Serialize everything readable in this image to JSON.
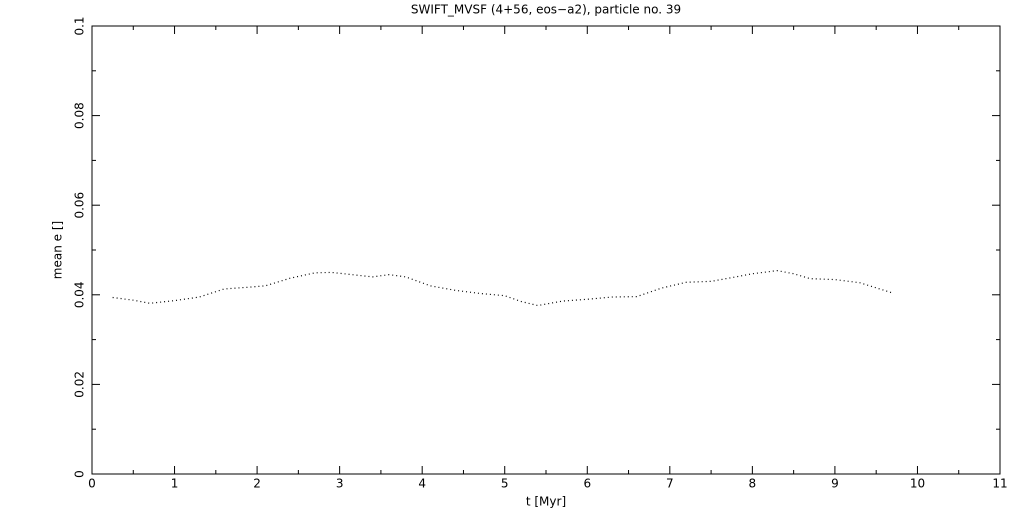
{
  "chart_data": {
    "type": "line",
    "title": "SWIFT_MVSF (4+56, eos−a2), particle no. 39",
    "x_label": "t [Myr]",
    "y_label": "mean e []",
    "x": [
      0.25,
      0.5,
      0.7,
      1.0,
      1.3,
      1.6,
      1.9,
      2.1,
      2.4,
      2.7,
      2.9,
      3.2,
      3.4,
      3.6,
      3.8,
      4.1,
      4.4,
      4.7,
      5.0,
      5.2,
      5.4,
      5.7,
      6.0,
      6.3,
      6.6,
      6.9,
      7.2,
      7.5,
      7.8,
      8.0,
      8.3,
      8.5,
      8.7,
      9.0,
      9.3,
      9.7
    ],
    "series": [
      {
        "name": "mean e",
        "color": "#000000",
        "values": [
          0.0394,
          0.0388,
          0.0381,
          0.0387,
          0.0395,
          0.0413,
          0.0417,
          0.042,
          0.0437,
          0.0449,
          0.045,
          0.0444,
          0.044,
          0.0445,
          0.044,
          0.042,
          0.041,
          0.0403,
          0.0398,
          0.0385,
          0.0376,
          0.0386,
          0.039,
          0.0395,
          0.0396,
          0.0415,
          0.0428,
          0.043,
          0.044,
          0.0447,
          0.0454,
          0.0447,
          0.0436,
          0.0434,
          0.0427,
          0.0404
        ]
      }
    ],
    "xlim": [
      0,
      11
    ],
    "xticks": [
      0,
      1,
      2,
      3,
      4,
      5,
      6,
      7,
      8,
      9,
      10,
      11
    ],
    "ylim": [
      0,
      0.1
    ],
    "yticks": [
      0,
      0.02,
      0.04,
      0.06,
      0.08,
      0.1
    ]
  }
}
